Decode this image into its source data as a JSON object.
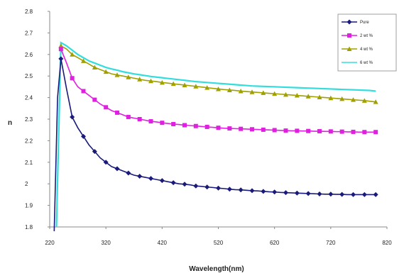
{
  "chart_data": {
    "type": "line",
    "title": "",
    "xlabel": "Wavelength(nm)",
    "ylabel": "n",
    "xlim": [
      220,
      820
    ],
    "ylim": [
      1.8,
      2.8
    ],
    "xticks": [
      220,
      320,
      420,
      520,
      620,
      720,
      820
    ],
    "yticks": [
      1.8,
      1.9,
      2.0,
      2.1,
      2.2,
      2.3,
      2.4,
      2.5,
      2.6,
      2.7,
      2.8
    ],
    "ytick_labels": [
      "1.8",
      "1.9",
      "2",
      "2.1",
      "2.2",
      "2.3",
      "2.4",
      "2.5",
      "2.6",
      "2.7",
      "2.8"
    ],
    "grid": false,
    "legend_position": "top-right",
    "x": [
      240,
      250,
      260,
      270,
      280,
      290,
      300,
      310,
      320,
      330,
      340,
      350,
      360,
      370,
      380,
      390,
      400,
      410,
      420,
      430,
      440,
      450,
      460,
      470,
      480,
      490,
      500,
      510,
      520,
      530,
      540,
      550,
      560,
      570,
      580,
      590,
      600,
      610,
      620,
      630,
      640,
      650,
      660,
      670,
      680,
      690,
      700,
      710,
      720,
      730,
      740,
      750,
      760,
      770,
      780,
      790,
      800
    ],
    "series": [
      {
        "name": "Pure",
        "color": "#1a1a7a",
        "marker": "diamond",
        "marker_every": 2,
        "lead_x": [
          228,
          234
        ],
        "lead_y": [
          1.78,
          2.4
        ],
        "values": [
          2.58,
          2.44,
          2.31,
          2.26,
          2.22,
          2.18,
          2.15,
          2.12,
          2.1,
          2.08,
          2.07,
          2.06,
          2.05,
          2.04,
          2.035,
          2.03,
          2.025,
          2.02,
          2.015,
          2.01,
          2.005,
          2.0,
          1.998,
          1.995,
          1.99,
          1.988,
          1.985,
          1.983,
          1.98,
          1.978,
          1.975,
          1.973,
          1.972,
          1.97,
          1.968,
          1.967,
          1.965,
          1.963,
          1.962,
          1.96,
          1.959,
          1.958,
          1.957,
          1.956,
          1.955,
          1.954,
          1.953,
          1.952,
          1.952,
          1.951,
          1.951,
          1.95,
          1.95,
          1.95,
          1.95,
          1.95,
          1.95
        ]
      },
      {
        "name": "2 wt %",
        "color": "#e020e0",
        "marker": "square",
        "marker_every": 2,
        "values": [
          2.625,
          2.56,
          2.49,
          2.45,
          2.43,
          2.41,
          2.39,
          2.37,
          2.355,
          2.34,
          2.33,
          2.32,
          2.31,
          2.305,
          2.3,
          2.295,
          2.29,
          2.287,
          2.283,
          2.28,
          2.277,
          2.275,
          2.272,
          2.27,
          2.268,
          2.266,
          2.264,
          2.262,
          2.26,
          2.258,
          2.257,
          2.256,
          2.255,
          2.254,
          2.253,
          2.252,
          2.251,
          2.25,
          2.249,
          2.248,
          2.247,
          2.246,
          2.246,
          2.245,
          2.245,
          2.244,
          2.244,
          2.243,
          2.243,
          2.242,
          2.242,
          2.241,
          2.241,
          2.24,
          2.24,
          2.24,
          2.24
        ]
      },
      {
        "name": "4 wt %",
        "color": "#a0a000",
        "marker": "triangle",
        "marker_every": 2,
        "values": [
          2.64,
          2.625,
          2.6,
          2.585,
          2.57,
          2.555,
          2.54,
          2.53,
          2.52,
          2.51,
          2.505,
          2.5,
          2.495,
          2.49,
          2.485,
          2.48,
          2.477,
          2.474,
          2.47,
          2.467,
          2.464,
          2.461,
          2.458,
          2.455,
          2.452,
          2.449,
          2.446,
          2.443,
          2.44,
          2.437,
          2.435,
          2.433,
          2.43,
          2.428,
          2.426,
          2.424,
          2.422,
          2.42,
          2.418,
          2.416,
          2.414,
          2.412,
          2.41,
          2.408,
          2.406,
          2.404,
          2.402,
          2.4,
          2.398,
          2.396,
          2.394,
          2.392,
          2.39,
          2.388,
          2.386,
          2.383,
          2.38
        ]
      },
      {
        "name": "6 wt %",
        "color": "#33dddd",
        "marker": "none",
        "lead_x": [
          232
        ],
        "lead_y": [
          1.8
        ],
        "values": [
          2.655,
          2.64,
          2.62,
          2.6,
          2.585,
          2.57,
          2.56,
          2.55,
          2.54,
          2.533,
          2.527,
          2.52,
          2.515,
          2.51,
          2.506,
          2.502,
          2.498,
          2.495,
          2.492,
          2.489,
          2.486,
          2.483,
          2.48,
          2.477,
          2.474,
          2.472,
          2.47,
          2.468,
          2.466,
          2.464,
          2.462,
          2.46,
          2.458,
          2.456,
          2.454,
          2.453,
          2.452,
          2.451,
          2.45,
          2.449,
          2.448,
          2.447,
          2.446,
          2.445,
          2.444,
          2.443,
          2.442,
          2.441,
          2.44,
          2.439,
          2.438,
          2.437,
          2.436,
          2.435,
          2.434,
          2.433,
          2.43
        ]
      }
    ]
  }
}
